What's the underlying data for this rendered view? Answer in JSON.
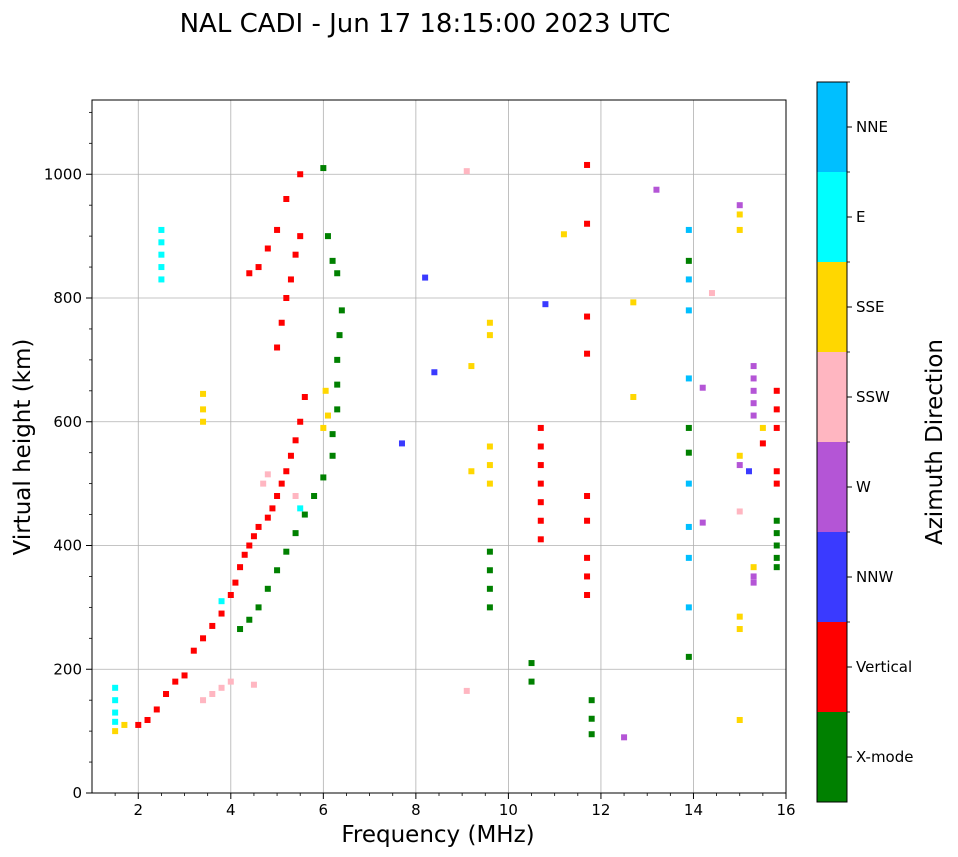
{
  "chart_data": {
    "type": "scatter",
    "title": "NAL CADI - Jun 17 18:15:00 2023 UTC",
    "xlabel": "Frequency (MHz)",
    "ylabel": "Virtual height (km)",
    "xlim": [
      1,
      16
    ],
    "ylim": [
      0,
      1120
    ],
    "xticks": [
      2,
      4,
      6,
      8,
      10,
      12,
      14,
      16
    ],
    "xtick_labels": [
      "2",
      "4",
      "6",
      "8",
      "10",
      "12",
      "14",
      "16"
    ],
    "yticks": [
      0,
      200,
      400,
      600,
      800,
      1000
    ],
    "ytick_labels": [
      "0",
      "200",
      "400",
      "600",
      "800",
      "1000"
    ],
    "grid": true,
    "colorbar": {
      "label": "Azimuth Direction",
      "categories": [
        {
          "name": "X-mode",
          "color": "#008000"
        },
        {
          "name": "Vertical",
          "color": "#ff0000"
        },
        {
          "name": "NNW",
          "color": "#3a3aff"
        },
        {
          "name": "W",
          "color": "#b455d6"
        },
        {
          "name": "SSW",
          "color": "#ffb6c1"
        },
        {
          "name": "SSE",
          "color": "#ffd700"
        },
        {
          "name": "E",
          "color": "#00ffff"
        },
        {
          "name": "NNE",
          "color": "#00bfff"
        }
      ]
    },
    "traces": [
      {
        "category": "Vertical",
        "points": [
          [
            2.0,
            110
          ],
          [
            2.2,
            118
          ],
          [
            2.4,
            135
          ],
          [
            2.6,
            160
          ],
          [
            2.8,
            180
          ],
          [
            3.0,
            190
          ],
          [
            3.2,
            230
          ],
          [
            3.4,
            250
          ],
          [
            3.6,
            270
          ],
          [
            3.8,
            290
          ],
          [
            4.0,
            320
          ],
          [
            4.1,
            340
          ],
          [
            4.2,
            365
          ],
          [
            4.3,
            385
          ],
          [
            4.4,
            400
          ],
          [
            4.5,
            415
          ],
          [
            4.6,
            430
          ],
          [
            4.8,
            445
          ],
          [
            4.9,
            460
          ],
          [
            5.0,
            480
          ],
          [
            5.1,
            500
          ],
          [
            5.2,
            520
          ],
          [
            5.3,
            545
          ],
          [
            5.4,
            570
          ],
          [
            5.5,
            600
          ],
          [
            5.6,
            640
          ]
        ]
      },
      {
        "category": "Vertical",
        "points": [
          [
            4.4,
            840
          ],
          [
            4.6,
            850
          ],
          [
            4.8,
            880
          ],
          [
            5.0,
            910
          ],
          [
            5.2,
            960
          ],
          [
            5.5,
            1000
          ]
        ]
      },
      {
        "category": "Vertical",
        "points": [
          [
            5.0,
            720
          ],
          [
            5.1,
            760
          ],
          [
            5.2,
            800
          ],
          [
            5.3,
            830
          ],
          [
            5.4,
            870
          ],
          [
            5.5,
            900
          ]
        ]
      },
      {
        "category": "X-mode",
        "points": [
          [
            4.2,
            265
          ],
          [
            4.4,
            280
          ],
          [
            4.6,
            300
          ],
          [
            4.8,
            330
          ],
          [
            5.0,
            360
          ],
          [
            5.2,
            390
          ],
          [
            5.4,
            420
          ],
          [
            5.6,
            450
          ],
          [
            5.8,
            480
          ],
          [
            6.0,
            510
          ],
          [
            6.2,
            545
          ],
          [
            6.2,
            580
          ],
          [
            6.3,
            620
          ],
          [
            6.3,
            660
          ],
          [
            6.3,
            700
          ],
          [
            6.35,
            740
          ],
          [
            6.4,
            780
          ]
        ]
      },
      {
        "category": "X-mode",
        "points": [
          [
            6.0,
            1010
          ],
          [
            6.1,
            900
          ],
          [
            6.2,
            860
          ],
          [
            6.3,
            840
          ]
        ]
      },
      {
        "category": "E",
        "points": [
          [
            1.5,
            170
          ],
          [
            1.5,
            150
          ],
          [
            1.5,
            130
          ],
          [
            1.5,
            115
          ],
          [
            2.5,
            830
          ],
          [
            2.5,
            850
          ],
          [
            2.5,
            870
          ],
          [
            2.5,
            890
          ],
          [
            2.5,
            910
          ],
          [
            3.8,
            310
          ],
          [
            5.5,
            460
          ]
        ]
      },
      {
        "category": "SSW",
        "points": [
          [
            3.4,
            150
          ],
          [
            3.6,
            160
          ],
          [
            3.8,
            170
          ],
          [
            4.0,
            180
          ],
          [
            4.5,
            175
          ],
          [
            4.7,
            500
          ],
          [
            4.8,
            515
          ],
          [
            5.4,
            480
          ]
        ]
      },
      {
        "category": "SSE",
        "points": [
          [
            1.5,
            100
          ],
          [
            1.7,
            110
          ],
          [
            3.4,
            600
          ],
          [
            3.4,
            620
          ],
          [
            3.4,
            645
          ],
          [
            6.0,
            590
          ],
          [
            6.1,
            610
          ],
          [
            6.05,
            650
          ]
        ]
      },
      {
        "category": "Vertical",
        "points": [
          [
            10.7,
            590
          ],
          [
            10.7,
            560
          ],
          [
            10.7,
            530
          ],
          [
            10.7,
            500
          ],
          [
            10.7,
            470
          ],
          [
            10.7,
            440
          ],
          [
            10.7,
            410
          ]
        ]
      },
      {
        "category": "X-mode",
        "points": [
          [
            9.6,
            390
          ],
          [
            9.6,
            360
          ],
          [
            9.6,
            330
          ],
          [
            9.6,
            300
          ]
        ]
      },
      {
        "category": "SSE",
        "points": [
          [
            9.6,
            760
          ],
          [
            9.6,
            740
          ],
          [
            9.6,
            560
          ],
          [
            9.6,
            530
          ],
          [
            9.6,
            500
          ],
          [
            9.2,
            690
          ],
          [
            9.2,
            520
          ]
        ]
      },
      {
        "category": "NNE",
        "points": [
          [
            13.9,
            910
          ],
          [
            13.9,
            830
          ],
          [
            13.9,
            780
          ],
          [
            13.9,
            670
          ],
          [
            13.9,
            500
          ],
          [
            13.9,
            430
          ],
          [
            13.9,
            380
          ],
          [
            13.9,
            300
          ]
        ]
      },
      {
        "category": "X-mode",
        "points": [
          [
            13.9,
            860
          ],
          [
            13.9,
            590
          ],
          [
            13.9,
            550
          ],
          [
            13.9,
            220
          ],
          [
            10.5,
            210
          ],
          [
            10.5,
            180
          ],
          [
            11.8,
            150
          ],
          [
            11.8,
            120
          ],
          [
            11.8,
            95
          ]
        ]
      },
      {
        "category": "Vertical",
        "points": [
          [
            15.8,
            650
          ],
          [
            15.8,
            620
          ],
          [
            15.8,
            590
          ],
          [
            15.8,
            520
          ],
          [
            15.8,
            500
          ],
          [
            15.5,
            565
          ],
          [
            11.7,
            480
          ],
          [
            11.7,
            440
          ],
          [
            11.7,
            380
          ],
          [
            11.7,
            350
          ],
          [
            11.7,
            320
          ],
          [
            11.7,
            1015
          ],
          [
            11.7,
            920
          ],
          [
            11.7,
            770
          ],
          [
            11.7,
            710
          ]
        ]
      },
      {
        "category": "X-mode",
        "points": [
          [
            15.8,
            440
          ],
          [
            15.8,
            420
          ],
          [
            15.8,
            400
          ],
          [
            15.8,
            380
          ],
          [
            15.8,
            365
          ]
        ]
      },
      {
        "category": "W",
        "points": [
          [
            15.3,
            690
          ],
          [
            15.3,
            670
          ],
          [
            15.3,
            650
          ],
          [
            15.3,
            630
          ],
          [
            15.3,
            610
          ],
          [
            15.0,
            950
          ],
          [
            15.0,
            530
          ],
          [
            15.3,
            350
          ],
          [
            15.3,
            340
          ]
        ]
      },
      {
        "category": "SSE",
        "points": [
          [
            15.0,
            935
          ],
          [
            15.0,
            910
          ],
          [
            15.0,
            545
          ],
          [
            15.5,
            590
          ],
          [
            15.3,
            365
          ],
          [
            15.0,
            285
          ],
          [
            15.0,
            265
          ],
          [
            15.0,
            118
          ],
          [
            12.7,
            793
          ],
          [
            12.7,
            640
          ],
          [
            11.2,
            903
          ]
        ]
      },
      {
        "category": "NNW",
        "points": [
          [
            8.2,
            833
          ],
          [
            7.7,
            565
          ],
          [
            8.4,
            680
          ],
          [
            10.8,
            790
          ],
          [
            15.2,
            520
          ]
        ]
      },
      {
        "category": "SSW",
        "points": [
          [
            14.4,
            808
          ],
          [
            9.1,
            1005
          ],
          [
            9.1,
            165
          ],
          [
            15.0,
            455
          ]
        ]
      },
      {
        "category": "W",
        "points": [
          [
            12.5,
            90
          ],
          [
            13.2,
            975
          ],
          [
            14.2,
            655
          ],
          [
            14.2,
            437
          ]
        ]
      }
    ]
  }
}
